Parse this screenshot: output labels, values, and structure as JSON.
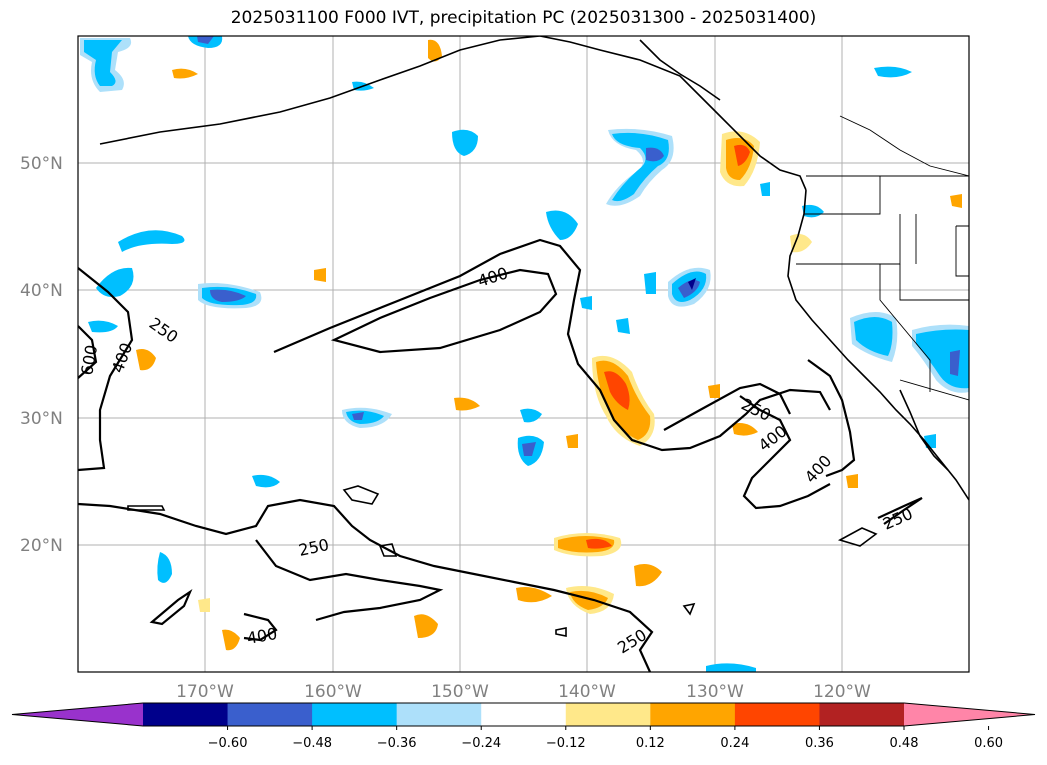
{
  "title": "2025031100 F000 IVT, precipitation PC (2025031300 - 2025031400)",
  "map": {
    "lat_labels": [
      "50°N",
      "40°N",
      "30°N",
      "20°N"
    ],
    "lon_labels": [
      "170°W",
      "160°W",
      "150°W",
      "140°W",
      "130°W",
      "120°W"
    ],
    "contour_labels": [
      {
        "text": "400",
        "line": "ivt-400"
      },
      {
        "text": "250",
        "line": "ivt-250"
      },
      {
        "text": "400",
        "line": "ivt-400"
      },
      {
        "text": "600",
        "line": "ivt-600"
      },
      {
        "text": "250",
        "line": "ivt-250"
      },
      {
        "text": "400",
        "line": "ivt-400"
      },
      {
        "text": "400",
        "line": "ivt-400"
      },
      {
        "text": "250",
        "line": "ivt-250"
      },
      {
        "text": "250",
        "line": "ivt-250"
      },
      {
        "text": "400",
        "line": "ivt-400"
      },
      {
        "text": "250",
        "line": "ivt-250"
      }
    ],
    "extent": {
      "lon_min": -180,
      "lon_max": -110,
      "lat_min": 10,
      "lat_max": 60
    }
  },
  "colorbar": {
    "ticks": [
      "−0.60",
      "−0.48",
      "−0.36",
      "−0.24",
      "−0.12",
      "0.12",
      "0.24",
      "0.36",
      "0.48",
      "0.60"
    ],
    "colors": [
      "#9932cc",
      "#00008b",
      "#3a5fcd",
      "#00bfff",
      "#ade0fa",
      "#ffffff",
      "#ffe88a",
      "#ffa500",
      "#ff4500",
      "#b22222",
      "#ff85a8"
    ]
  },
  "colors": {
    "grid": "#b0b0b0",
    "contour": "#000000",
    "neg_light": "#ade0fa",
    "neg_mid": "#00bfff",
    "neg_strong": "#3a5fcd",
    "neg_deep": "#00008b",
    "pos_light": "#ffe88a",
    "pos_mid": "#ffa500",
    "pos_strong": "#ff4500"
  }
}
